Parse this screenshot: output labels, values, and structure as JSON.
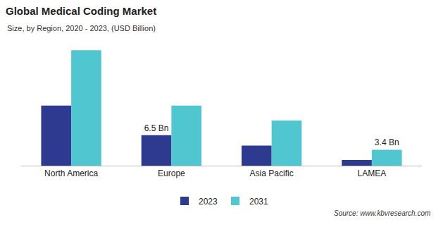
{
  "chart_data": {
    "type": "bar",
    "title": "Global Medical Coding Market",
    "subtitle": "Size, by Region, 2020 - 2023, (USD Billion)",
    "categories": [
      "North America",
      "Europe",
      "Asia Pacific",
      "LAMEA"
    ],
    "series": [
      {
        "name": "2023",
        "color": "#2e3a8f",
        "values": [
          12.8,
          6.5,
          4.3,
          1.2
        ],
        "value_labels": [
          null,
          "6.5 Bn",
          null,
          null
        ]
      },
      {
        "name": "2031",
        "color": "#4fc6d0",
        "values": [
          24.6,
          12.8,
          9.6,
          3.4
        ],
        "value_labels": [
          null,
          null,
          null,
          "3.4 Bn"
        ]
      }
    ],
    "ylim": [
      0,
      26
    ],
    "tick_labels": "x",
    "grid": false,
    "legend": "bottom",
    "annotations": [
      "Source: www.kbvresearch.com"
    ]
  }
}
